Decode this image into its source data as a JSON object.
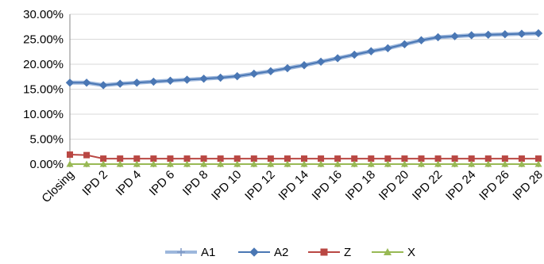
{
  "chart_data": {
    "type": "line",
    "title": "",
    "xlabel": "",
    "ylabel": "",
    "ylim": [
      0,
      0.3
    ],
    "yticks": [
      "0.00%",
      "5.00%",
      "10.00%",
      "15.00%",
      "20.00%",
      "25.00%",
      "30.00%"
    ],
    "grid": true,
    "legend_position": "bottom",
    "categories": [
      "Closing",
      "IPD 1",
      "IPD 2",
      "IPD 3",
      "IPD 4",
      "IPD 5",
      "IPD 6",
      "IPD 7",
      "IPD 8",
      "IPD 9",
      "IPD 10",
      "IPD 11",
      "IPD 12",
      "IPD 13",
      "IPD 14",
      "IPD 15",
      "IPD 16",
      "IPD 17",
      "IPD 18",
      "IPD 19",
      "IPD 20",
      "IPD 21",
      "IPD 22",
      "IPD 23",
      "IPD 24",
      "IPD 25",
      "IPD 26",
      "IPD 27",
      "IPD 28"
    ],
    "xtick_labels": [
      "Closing",
      "IPD 2",
      "IPD 4",
      "IPD 6",
      "IPD 8",
      "IPD 10",
      "IPD 12",
      "IPD 14",
      "IPD 16",
      "IPD 18",
      "IPD 20",
      "IPD 22",
      "IPD 24",
      "IPD 26",
      "IPD 28"
    ],
    "series": [
      {
        "name": "A1",
        "color": "#9db7dc",
        "marker": "plus",
        "values": [
          0.163,
          0.163,
          0.158,
          0.161,
          0.163,
          0.165,
          0.167,
          0.169,
          0.171,
          0.173,
          0.176,
          0.181,
          0.186,
          0.192,
          0.198,
          0.205,
          0.212,
          0.219,
          0.226,
          0.232,
          0.24,
          0.248,
          0.254,
          0.256,
          0.258,
          0.259,
          0.26,
          0.261,
          0.262
        ]
      },
      {
        "name": "A2",
        "color": "#4a77b4",
        "marker": "diamond",
        "values": [
          0.163,
          0.163,
          0.158,
          0.161,
          0.163,
          0.165,
          0.167,
          0.169,
          0.171,
          0.173,
          0.176,
          0.181,
          0.186,
          0.192,
          0.198,
          0.205,
          0.212,
          0.219,
          0.226,
          0.232,
          0.24,
          0.248,
          0.254,
          0.256,
          0.258,
          0.259,
          0.26,
          0.261,
          0.262
        ]
      },
      {
        "name": "Z",
        "color": "#b94743",
        "marker": "square",
        "values": [
          0.019,
          0.018,
          0.011,
          0.011,
          0.011,
          0.011,
          0.011,
          0.011,
          0.011,
          0.011,
          0.011,
          0.011,
          0.011,
          0.011,
          0.011,
          0.011,
          0.011,
          0.011,
          0.011,
          0.011,
          0.011,
          0.011,
          0.011,
          0.011,
          0.011,
          0.011,
          0.011,
          0.011,
          0.011
        ]
      },
      {
        "name": "X",
        "color": "#98b954",
        "marker": "triangle",
        "values": [
          0.0,
          0.0,
          0.0,
          0.0,
          0.0,
          0.0,
          0.0,
          0.0,
          0.0,
          0.0,
          0.0,
          0.0,
          0.0,
          0.0,
          0.0,
          0.0,
          0.0,
          0.0,
          0.0,
          0.0,
          0.0,
          0.0,
          0.0,
          0.0,
          0.0,
          0.0,
          0.0,
          0.0,
          0.0
        ]
      }
    ]
  }
}
